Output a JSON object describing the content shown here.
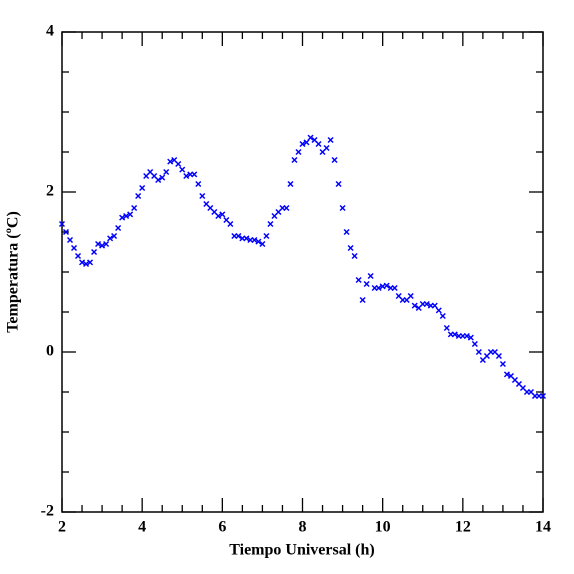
{
  "chart_data": {
    "type": "scatter",
    "x_label": "Tiempo Universal (h)",
    "y_label": "Temperatura (ºC)",
    "xlim": [
      2,
      14
    ],
    "ylim": [
      -2,
      4
    ],
    "xticks": [
      2,
      4,
      6,
      8,
      10,
      12,
      14
    ],
    "yticks": [
      -2,
      0,
      2,
      4
    ],
    "xticks_minor": [
      2.5,
      3,
      3.5,
      4.5,
      5,
      5.5,
      6.5,
      7,
      7.5,
      8.5,
      9,
      9.5,
      10.5,
      11,
      11.5,
      12.5,
      13,
      13.5
    ],
    "yticks_minor": [
      -1.5,
      -1,
      -0.5,
      0.5,
      1,
      1.5,
      2.5,
      3,
      3.5
    ],
    "series": [
      {
        "color": "#0000ff",
        "x": [
          2.0,
          2.1,
          2.2,
          2.3,
          2.4,
          2.5,
          2.6,
          2.7,
          2.8,
          2.9,
          3.0,
          3.1,
          3.2,
          3.3,
          3.4,
          3.5,
          3.6,
          3.7,
          3.8,
          3.9,
          4.0,
          4.1,
          4.2,
          4.3,
          4.4,
          4.5,
          4.6,
          4.7,
          4.8,
          4.9,
          5.0,
          5.1,
          5.2,
          5.3,
          5.4,
          5.5,
          5.6,
          5.7,
          5.8,
          5.9,
          6.0,
          6.1,
          6.2,
          6.3,
          6.4,
          6.5,
          6.6,
          6.7,
          6.8,
          6.9,
          7.0,
          7.1,
          7.2,
          7.3,
          7.4,
          7.5,
          7.6,
          7.7,
          7.8,
          7.9,
          8.0,
          8.1,
          8.2,
          8.3,
          8.4,
          8.5,
          8.6,
          8.7,
          8.8,
          8.9,
          9.0,
          9.1,
          9.2,
          9.3,
          9.4,
          9.5,
          9.6,
          9.7,
          9.8,
          9.9,
          10.0,
          10.1,
          10.2,
          10.3,
          10.4,
          10.5,
          10.6,
          10.7,
          10.8,
          10.9,
          11.0,
          11.1,
          11.2,
          11.3,
          11.4,
          11.5,
          11.6,
          11.7,
          11.8,
          11.9,
          12.0,
          12.1,
          12.2,
          12.3,
          12.4,
          12.5,
          12.6,
          12.7,
          12.8,
          12.9,
          13.0,
          13.1,
          13.2,
          13.3,
          13.4,
          13.5,
          13.6,
          13.7,
          13.8,
          13.9,
          14.0
        ],
        "values": [
          1.6,
          1.5,
          1.4,
          1.3,
          1.2,
          1.12,
          1.1,
          1.12,
          1.25,
          1.35,
          1.33,
          1.35,
          1.42,
          1.45,
          1.55,
          1.68,
          1.7,
          1.72,
          1.8,
          1.95,
          2.05,
          2.2,
          2.25,
          2.2,
          2.15,
          2.18,
          2.25,
          2.38,
          2.4,
          2.35,
          2.28,
          2.2,
          2.22,
          2.22,
          2.1,
          1.95,
          1.85,
          1.8,
          1.75,
          1.7,
          1.72,
          1.65,
          1.6,
          1.45,
          1.45,
          1.42,
          1.42,
          1.4,
          1.4,
          1.38,
          1.35,
          1.45,
          1.6,
          1.7,
          1.75,
          1.8,
          1.8,
          2.1,
          2.4,
          2.5,
          2.6,
          2.62,
          2.68,
          2.65,
          2.6,
          2.5,
          2.55,
          2.65,
          2.4,
          2.1,
          1.8,
          1.5,
          1.3,
          1.2,
          0.9,
          0.65,
          0.85,
          0.95,
          0.8,
          0.8,
          0.82,
          0.83,
          0.8,
          0.8,
          0.7,
          0.65,
          0.65,
          0.7,
          0.58,
          0.55,
          0.6,
          0.6,
          0.58,
          0.58,
          0.52,
          0.45,
          0.3,
          0.22,
          0.22,
          0.2,
          0.2,
          0.2,
          0.18,
          0.1,
          0.0,
          -0.1,
          -0.05,
          0.0,
          0.0,
          -0.05,
          -0.15,
          -0.28,
          -0.3,
          -0.35,
          -0.4,
          -0.45,
          -0.5,
          -0.5,
          -0.55,
          -0.55,
          -0.55
        ]
      }
    ]
  }
}
